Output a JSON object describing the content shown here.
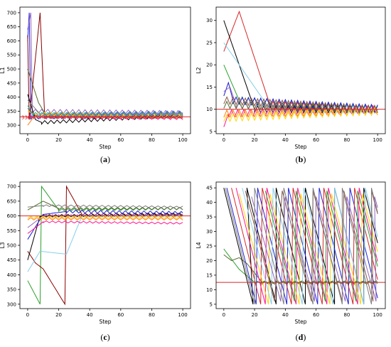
{
  "chart_data": [
    {
      "id": "a",
      "caption": "(a)",
      "type": "line",
      "xlabel": "Step",
      "ylabel": "L1",
      "xlim": [
        -5,
        105
      ],
      "ylim": [
        270,
        720
      ],
      "xticks": [
        0,
        20,
        40,
        60,
        80,
        100
      ],
      "yticks": [
        300,
        350,
        400,
        450,
        500,
        550,
        600,
        650,
        700
      ],
      "ref_line": {
        "y": 330,
        "label": "330",
        "color": "#d62728"
      },
      "grid": false,
      "legend": "none",
      "series": [
        {
          "color": "#1f1fd6",
          "points": [
            [
              0,
              600
            ],
            [
              1,
              700
            ],
            [
              2,
              330
            ],
            [
              100,
              335
            ]
          ],
          "osc": [
            8,
            5
          ]
        },
        {
          "color": "#9467bd",
          "points": [
            [
              0,
              640
            ],
            [
              2,
              700
            ],
            [
              3,
              350
            ],
            [
              100,
              345
            ]
          ],
          "osc": [
            7,
            4
          ]
        },
        {
          "color": "#8b0000",
          "points": [
            [
              0,
              620
            ],
            [
              1,
              320
            ],
            [
              8,
              700
            ],
            [
              11,
              330
            ],
            [
              100,
              330
            ]
          ],
          "osc": [
            6,
            4
          ]
        },
        {
          "color": "#000000",
          "points": [
            [
              0,
              410
            ],
            [
              5,
              320
            ],
            [
              9,
              310
            ],
            [
              100,
              335
            ]
          ],
          "osc": [
            6,
            4
          ]
        },
        {
          "color": "#556b2f",
          "points": [
            [
              0,
              500
            ],
            [
              7,
              380
            ],
            [
              12,
              335
            ],
            [
              100,
              340
            ]
          ],
          "osc": [
            7,
            4
          ]
        },
        {
          "color": "#ff7f0e",
          "points": [
            [
              0,
              300
            ],
            [
              4,
              330
            ],
            [
              100,
              330
            ]
          ],
          "osc": [
            6,
            4
          ]
        },
        {
          "color": "#ffd700",
          "points": [
            [
              0,
              350
            ],
            [
              5,
              340
            ],
            [
              100,
              335
            ]
          ],
          "osc": [
            6,
            4
          ]
        },
        {
          "color": "#ff1493",
          "points": [
            [
              0,
              330
            ],
            [
              100,
              325
            ]
          ],
          "osc": [
            5,
            4
          ]
        },
        {
          "color": "#20b2aa",
          "points": [
            [
              0,
              370
            ],
            [
              3,
              340
            ],
            [
              100,
              340
            ]
          ],
          "osc": [
            5,
            4
          ]
        },
        {
          "color": "#8c564b",
          "points": [
            [
              0,
              360
            ],
            [
              6,
              330
            ],
            [
              100,
              330
            ]
          ],
          "osc": [
            5,
            4
          ]
        },
        {
          "color": "#4169e1",
          "points": [
            [
              20,
              340
            ],
            [
              100,
              345
            ]
          ],
          "osc": [
            6,
            4
          ]
        },
        {
          "color": "#7f7f7f",
          "points": [
            [
              0,
              390
            ],
            [
              8,
              340
            ],
            [
              100,
              338
            ]
          ],
          "osc": [
            5,
            4
          ]
        }
      ]
    },
    {
      "id": "b",
      "caption": "(b)",
      "type": "line",
      "xlabel": "Step",
      "ylabel": "L2",
      "xlim": [
        -5,
        105
      ],
      "ylim": [
        4.5,
        33
      ],
      "xticks": [
        0,
        20,
        40,
        60,
        80,
        100
      ],
      "yticks": [
        5,
        10,
        15,
        20,
        25,
        30
      ],
      "ref_line": {
        "y": 10,
        "label": "",
        "color": "#d62728"
      },
      "grid": false,
      "legend": "none",
      "series": [
        {
          "color": "#d62728",
          "points": [
            [
              0,
              23
            ],
            [
              10,
              32
            ],
            [
              30,
              11
            ],
            [
              100,
              10
            ]
          ],
          "osc": [
            0.8,
            4
          ]
        },
        {
          "color": "#000000",
          "points": [
            [
              0,
              30
            ],
            [
              20,
              10
            ],
            [
              100,
              10
            ]
          ],
          "osc": [
            0.8,
            4
          ]
        },
        {
          "color": "#87ceeb",
          "points": [
            [
              0,
              25
            ],
            [
              30,
              10
            ],
            [
              100,
              10
            ]
          ],
          "osc": [
            0.8,
            4
          ]
        },
        {
          "color": "#2ca02c",
          "points": [
            [
              0,
              20
            ],
            [
              10,
              12
            ],
            [
              100,
              10
            ]
          ],
          "osc": [
            0.8,
            4
          ]
        },
        {
          "color": "#1f1fd6",
          "points": [
            [
              0,
              13
            ],
            [
              3,
              16
            ],
            [
              6,
              12
            ],
            [
              100,
              10.2
            ]
          ],
          "osc": [
            0.8,
            4
          ]
        },
        {
          "color": "#9467bd",
          "points": [
            [
              0,
              14
            ],
            [
              4,
              15
            ],
            [
              8,
              11
            ],
            [
              100,
              10
            ]
          ],
          "osc": [
            0.8,
            4
          ]
        },
        {
          "color": "#ff1493",
          "points": [
            [
              0,
              6
            ],
            [
              3,
              9
            ],
            [
              100,
              10
            ]
          ],
          "osc": [
            0.8,
            4
          ]
        },
        {
          "color": "#ff7f0e",
          "points": [
            [
              0,
              9
            ],
            [
              100,
              9.5
            ]
          ],
          "osc": [
            0.8,
            4
          ]
        },
        {
          "color": "#ffd700",
          "points": [
            [
              0,
              8
            ],
            [
              100,
              9.6
            ]
          ],
          "osc": [
            0.8,
            4
          ]
        },
        {
          "color": "#556b2f",
          "points": [
            [
              0,
              11
            ],
            [
              100,
              10
            ]
          ],
          "osc": [
            0.8,
            4
          ]
        },
        {
          "color": "#8c564b",
          "points": [
            [
              0,
              12
            ],
            [
              100,
              10
            ]
          ],
          "osc": [
            0.8,
            4
          ]
        }
      ]
    },
    {
      "id": "c",
      "caption": "(c)",
      "type": "line",
      "xlabel": "Step",
      "ylabel": "L3",
      "xlim": [
        -5,
        105
      ],
      "ylim": [
        285,
        715
      ],
      "xticks": [
        0,
        20,
        40,
        60,
        80,
        100
      ],
      "yticks": [
        300,
        350,
        400,
        450,
        500,
        550,
        600,
        650,
        700
      ],
      "ref_line": {
        "y": 600,
        "label": "",
        "color": "#d62728"
      },
      "grid": false,
      "legend": "none",
      "series": [
        {
          "color": "#2ca02c",
          "points": [
            [
              0,
              380
            ],
            [
              8,
              300
            ],
            [
              9,
              700
            ],
            [
              20,
              620
            ],
            [
              100,
              625
            ]
          ],
          "osc": [
            4,
            4
          ]
        },
        {
          "color": "#8b0000",
          "points": [
            [
              0,
              480
            ],
            [
              5,
              440
            ],
            [
              10,
              420
            ],
            [
              24,
              300
            ],
            [
              25,
              700
            ],
            [
              35,
              605
            ],
            [
              100,
              605
            ]
          ],
          "osc": [
            4,
            4
          ]
        },
        {
          "color": "#000000",
          "points": [
            [
              0,
              450
            ],
            [
              8,
              600
            ],
            [
              100,
              605
            ]
          ],
          "osc": [
            4,
            4
          ]
        },
        {
          "color": "#87ceeb",
          "points": [
            [
              0,
              410
            ],
            [
              8,
              480
            ],
            [
              25,
              470
            ],
            [
              35,
              600
            ],
            [
              100,
              600
            ]
          ],
          "osc": [
            3,
            4
          ]
        },
        {
          "color": "#556b2f",
          "points": [
            [
              0,
              620
            ],
            [
              10,
              650
            ],
            [
              20,
              625
            ],
            [
              100,
              625
            ]
          ],
          "osc": [
            4,
            4
          ]
        },
        {
          "color": "#7f7f7f",
          "points": [
            [
              0,
              630
            ],
            [
              10,
              635
            ],
            [
              100,
              630
            ]
          ],
          "osc": [
            3,
            4
          ]
        },
        {
          "color": "#1f1fd6",
          "points": [
            [
              0,
              520
            ],
            [
              10,
              605
            ],
            [
              25,
              615
            ],
            [
              100,
              610
            ]
          ],
          "osc": [
            5,
            4
          ]
        },
        {
          "color": "#9467bd",
          "points": [
            [
              0,
              560
            ],
            [
              10,
              600
            ],
            [
              100,
              600
            ]
          ],
          "osc": [
            4,
            4
          ]
        },
        {
          "color": "#ff1493",
          "points": [
            [
              0,
              540
            ],
            [
              10,
              580
            ],
            [
              100,
              575
            ]
          ],
          "osc": [
            3,
            4
          ]
        },
        {
          "color": "#ff7f0e",
          "points": [
            [
              0,
              590
            ],
            [
              100,
              590
            ]
          ],
          "osc": [
            4,
            4
          ]
        },
        {
          "color": "#ffd700",
          "points": [
            [
              0,
              595
            ],
            [
              100,
              595
            ]
          ],
          "osc": [
            4,
            4
          ]
        }
      ]
    },
    {
      "id": "d",
      "caption": "(d)",
      "type": "line",
      "xlabel": "Step",
      "ylabel": "L4",
      "xlim": [
        -5,
        105
      ],
      "ylim": [
        3.5,
        47
      ],
      "xticks": [
        0,
        20,
        40,
        60,
        80,
        100
      ],
      "yticks": [
        5,
        10,
        15,
        20,
        25,
        30,
        35,
        40,
        45
      ],
      "ref_line": {
        "y": 12.5,
        "label": "",
        "color": "#d62728"
      },
      "grid": false,
      "legend": "none",
      "series": [
        {
          "color": "#2ca02c",
          "points": [
            [
              0,
              24
            ],
            [
              10,
              17
            ],
            [
              20,
              12.5
            ],
            [
              100,
              12.5
            ]
          ],
          "osc": [
            0.4,
            4
          ]
        },
        {
          "color": "#556b2f",
          "points": [
            [
              0,
              22
            ],
            [
              5,
              20
            ],
            [
              10,
              21
            ],
            [
              15,
              19
            ],
            [
              25,
              12.5
            ],
            [
              100,
              12.5
            ]
          ],
          "osc": [
            0.6,
            4
          ]
        }
      ],
      "sawtooth": [
        {
          "color": "#000000",
          "peaks": [
            0,
            15,
            34,
            53,
            72,
            91
          ],
          "top": 45,
          "bottom": 5
        },
        {
          "color": "#1f1fd6",
          "peaks": [
            2,
            22,
            42,
            62,
            82
          ],
          "top": 45,
          "bottom": 5
        },
        {
          "color": "#d62728",
          "peaks": [
            5,
            25,
            45,
            65,
            85
          ],
          "top": 45,
          "bottom": 5
        },
        {
          "color": "#ff1493",
          "peaks": [
            8,
            28,
            48,
            68,
            88
          ],
          "top": 45,
          "bottom": 5
        },
        {
          "color": "#ffd700",
          "peaks": [
            10,
            30,
            50,
            70,
            90
          ],
          "top": 43,
          "bottom": 5
        },
        {
          "color": "#87ceeb",
          "peaks": [
            12,
            32,
            52,
            72,
            92
          ],
          "top": 45,
          "bottom": 5
        },
        {
          "color": "#8c564b",
          "points_only": true,
          "peaks": [
            14,
            38,
            58,
            78,
            96
          ],
          "top": 44,
          "bottom": 6
        },
        {
          "color": "#9467bd",
          "peaks": [
            18,
            40,
            60,
            80,
            98
          ],
          "top": 42,
          "bottom": 6
        },
        {
          "color": "#7f7f7f",
          "peaks": [
            1,
            20,
            39,
            58,
            77,
            96
          ],
          "top": 45,
          "bottom": 5
        },
        {
          "color": "#2ca02c",
          "peaks": [
            27,
            47,
            67,
            87
          ],
          "top": 44,
          "bottom": 6
        }
      ]
    }
  ]
}
